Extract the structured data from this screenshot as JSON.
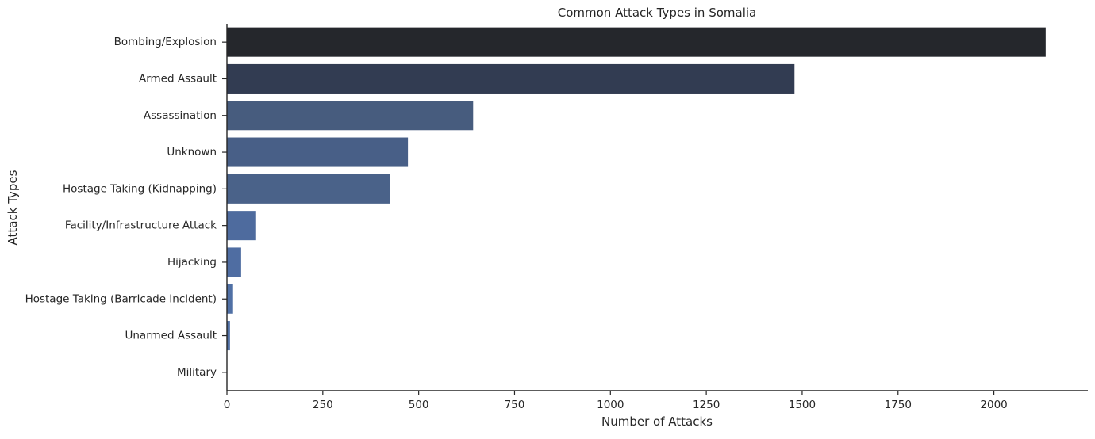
{
  "chart_data": {
    "type": "bar",
    "orientation": "horizontal",
    "title": "Common Attack Types in Somalia",
    "xlabel": "Number of Attacks",
    "ylabel": "Attack Types",
    "categories": [
      "Bombing/Explosion",
      "Armed Assault",
      "Assassination",
      "Unknown",
      "Hostage Taking (Kidnapping)",
      "Facility/Infrastructure Attack",
      "Hijacking",
      "Hostage Taking (Barricade Incident)",
      "Unarmed Assault",
      "Military"
    ],
    "values": [
      2135,
      1480,
      642,
      472,
      425,
      74,
      37,
      16,
      8,
      1
    ],
    "colors": [
      "#25272c",
      "#323c52",
      "#475c7e",
      "#485f87",
      "#4a6289",
      "#4e6b9e",
      "#4f6da2",
      "#5070a5",
      "#5070a5",
      "#5070a5"
    ],
    "xticks": [
      0,
      250,
      500,
      750,
      1000,
      1250,
      1500,
      1750,
      2000
    ],
    "xlim": [
      0,
      2245
    ],
    "grid": false,
    "legend": "none"
  }
}
